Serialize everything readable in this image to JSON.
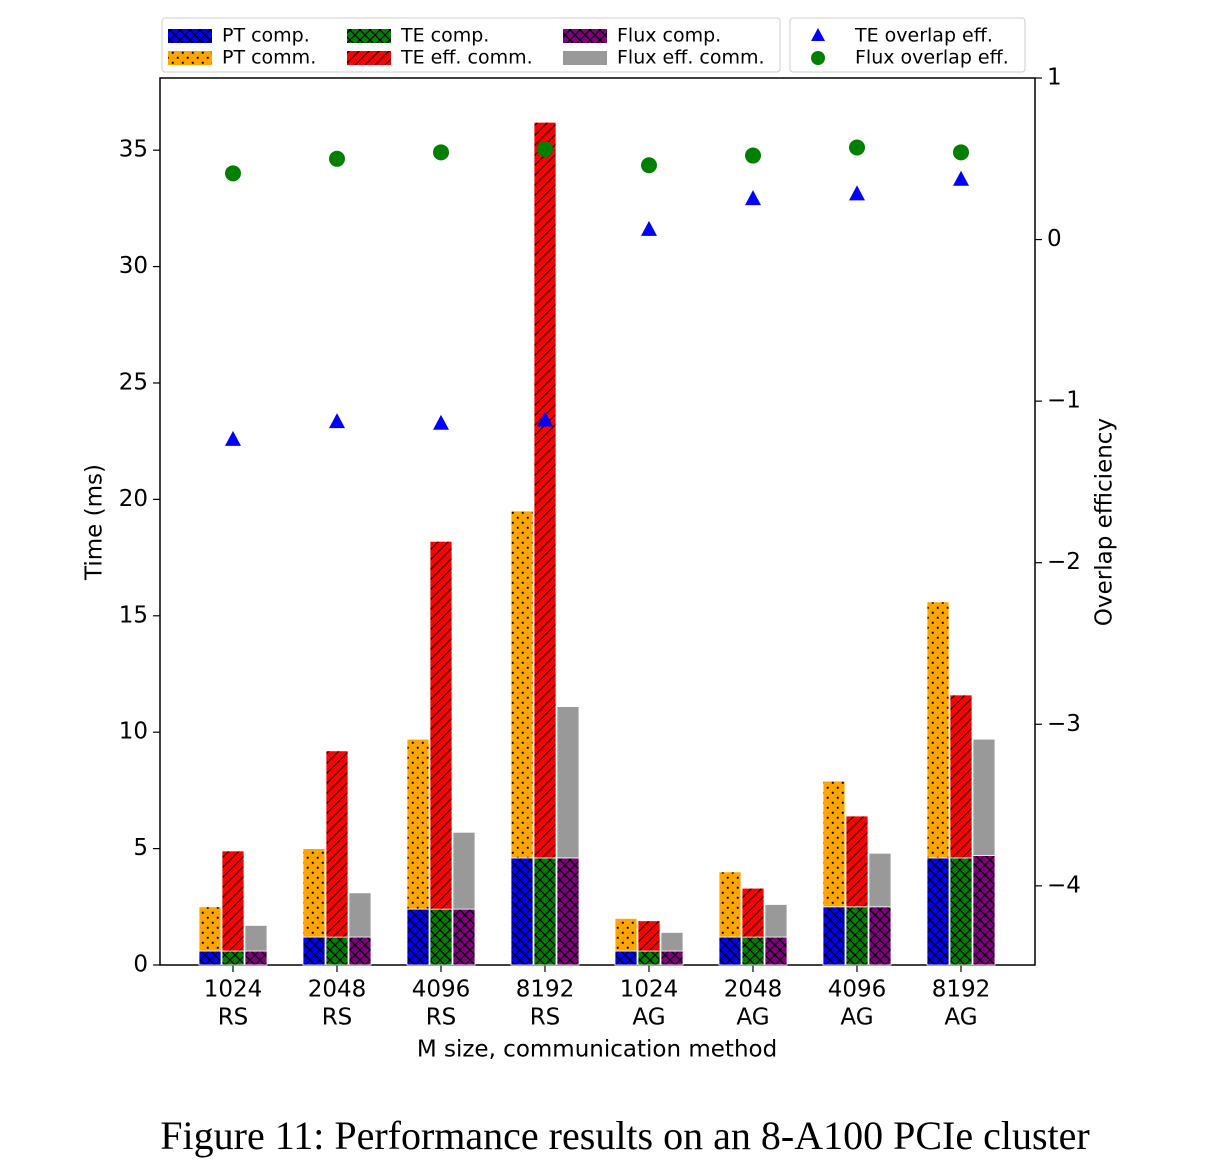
{
  "chart_data": {
    "type": "bar",
    "caption": "Figure 11: Performance results on an 8-A100 PCIe cluster",
    "xlabel": "M size, communication method",
    "ylabel": "Time (ms)",
    "y2label": "Overlap efficiency",
    "categories": [
      [
        "1024",
        "RS"
      ],
      [
        "2048",
        "RS"
      ],
      [
        "4096",
        "RS"
      ],
      [
        "8192",
        "RS"
      ],
      [
        "1024",
        "AG"
      ],
      [
        "2048",
        "AG"
      ],
      [
        "4096",
        "AG"
      ],
      [
        "8192",
        "AG"
      ]
    ],
    "ylim": [
      0,
      38.1
    ],
    "yticks": [
      0,
      5,
      10,
      15,
      20,
      25,
      30,
      35
    ],
    "y2lim": [
      -4.49,
      1
    ],
    "y2ticks": [
      {
        "value": -4,
        "label": "−4"
      },
      {
        "value": -3,
        "label": "−3"
      },
      {
        "value": -2,
        "label": "−2"
      },
      {
        "value": -1,
        "label": "−1"
      },
      0,
      1
    ],
    "series": [
      {
        "name": "PT comp.",
        "color": "#0000ff",
        "hatch": "cross",
        "values": [
          0.6,
          1.2,
          2.4,
          4.6,
          0.6,
          1.2,
          2.5,
          4.6
        ]
      },
      {
        "name": "PT comm.",
        "color": "#ffa500",
        "hatch": "dot",
        "values": [
          1.9,
          3.8,
          7.3,
          14.9,
          1.4,
          2.8,
          5.4,
          11.0
        ]
      },
      {
        "name": "TE comp.",
        "color": "#008000",
        "hatch": "cross",
        "values": [
          0.6,
          1.2,
          2.4,
          4.6,
          0.6,
          1.2,
          2.5,
          4.6
        ]
      },
      {
        "name": "TE eff. comm.",
        "color": "#ff0000",
        "hatch": "slash",
        "values": [
          4.3,
          8.0,
          15.8,
          31.6,
          1.3,
          2.1,
          3.9,
          7.0
        ]
      },
      {
        "name": "Flux comp.",
        "color": "#800080",
        "hatch": "cross",
        "values": [
          0.6,
          1.2,
          2.4,
          4.6,
          0.6,
          1.2,
          2.5,
          4.7
        ]
      },
      {
        "name": "Flux eff. comm.",
        "color": "#999999",
        "values": [
          1.1,
          1.9,
          3.3,
          6.5,
          0.8,
          1.4,
          2.3,
          5.0
        ]
      },
      {
        "name": "TE overlap eff.",
        "color": "#0000ff",
        "type": "scatter",
        "marker": "triangle",
        "axis": "y2",
        "values": [
          -1.24,
          -1.13,
          -1.14,
          -1.12,
          0.06,
          0.25,
          0.28,
          0.37
        ]
      },
      {
        "name": "Flux overlap eff.",
        "color": "#008000",
        "type": "scatter",
        "marker": "circle",
        "axis": "y2",
        "values": [
          0.41,
          0.5,
          0.54,
          0.56,
          0.46,
          0.52,
          0.57,
          0.54
        ]
      }
    ]
  }
}
